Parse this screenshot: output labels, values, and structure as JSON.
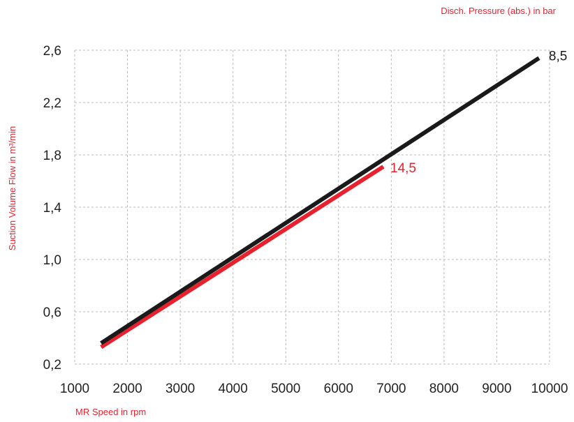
{
  "colors": {
    "accent": "#e8212e",
    "series_dark": "#1a1a1a",
    "grid": "#b8b8b8"
  },
  "chart_data": {
    "type": "line",
    "title": "",
    "legend_title": "Disch. Pressure (abs.) in bar",
    "xlabel": "MR Speed in rpm",
    "ylabel": "Suction Volume Flow in m³/min",
    "xlim": [
      1000,
      10000
    ],
    "ylim": [
      0.2,
      2.6
    ],
    "xticks": [
      1000,
      2000,
      3000,
      4000,
      5000,
      6000,
      7000,
      8000,
      9000,
      10000
    ],
    "yticks": [
      "0,2",
      "0,6",
      "1,0",
      "1,4",
      "1,8",
      "2,2",
      "2,6"
    ],
    "ytick_values": [
      0.2,
      0.6,
      1.0,
      1.4,
      1.8,
      2.2,
      2.6
    ],
    "grid": true,
    "series": [
      {
        "name": "8,5",
        "color": "#1a1a1a",
        "x": [
          1500,
          9800
        ],
        "y": [
          0.36,
          2.54
        ]
      },
      {
        "name": "14,5",
        "color": "#e8212e",
        "x": [
          1500,
          6850
        ],
        "y": [
          0.33,
          1.71
        ]
      }
    ]
  }
}
